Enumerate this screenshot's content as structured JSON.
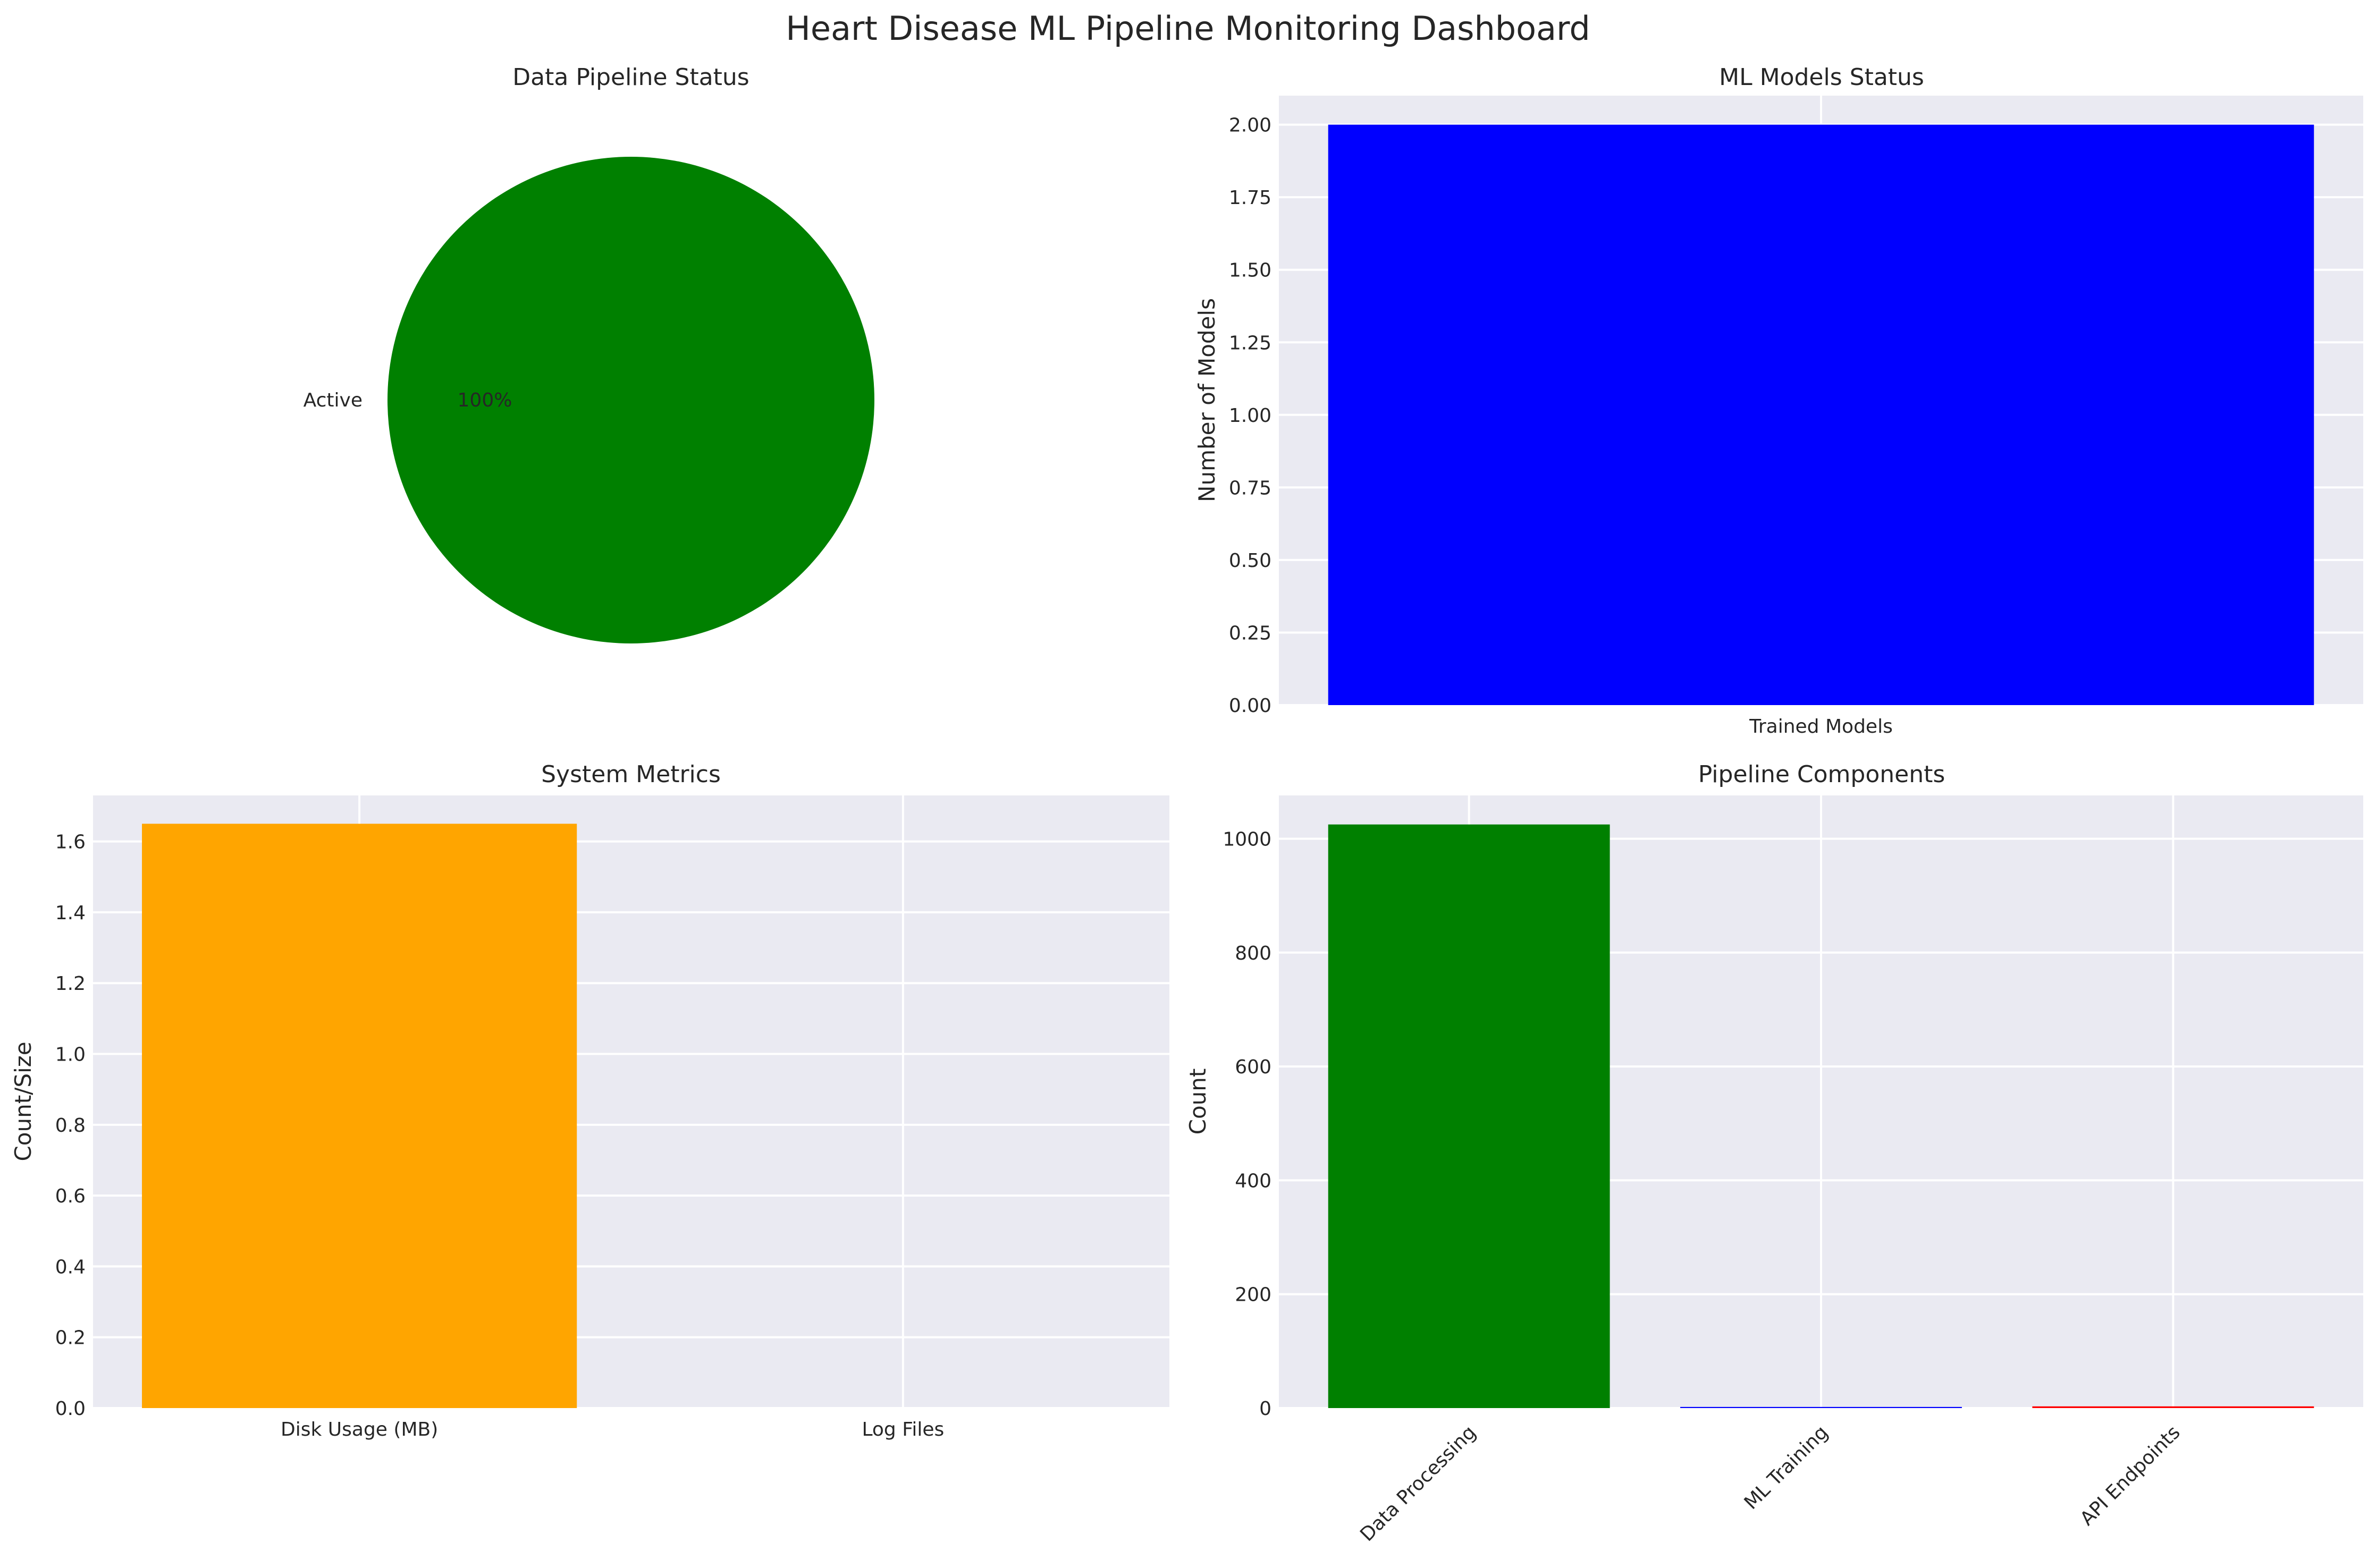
{
  "suptitle": "Heart Disease ML Pipeline Monitoring Dashboard",
  "chart_data": [
    {
      "type": "pie",
      "title": "Data Pipeline Status",
      "labels": [
        "Active"
      ],
      "values": [
        1
      ],
      "pct_labels": [
        "100%"
      ],
      "colors": [
        "#008000"
      ]
    },
    {
      "type": "bar",
      "title": "ML Models Status",
      "xlabel": "",
      "ylabel": "Number of Models",
      "categories": [
        "Trained Models"
      ],
      "values": [
        2
      ],
      "colors": [
        "#0000ff"
      ],
      "ylim": [
        0,
        2.1
      ],
      "yticks": [
        "0.00",
        "0.25",
        "0.50",
        "0.75",
        "1.00",
        "1.25",
        "1.50",
        "1.75",
        "2.00"
      ],
      "grid": true
    },
    {
      "type": "bar",
      "title": "System Metrics",
      "xlabel": "",
      "ylabel": "Count/Size",
      "categories": [
        "Disk Usage (MB)",
        "Log Files"
      ],
      "values": [
        1.65,
        0
      ],
      "colors": [
        "#ffa500",
        "#ffa500"
      ],
      "ylim": [
        0,
        1.73
      ],
      "yticks": [
        "0.0",
        "0.2",
        "0.4",
        "0.6",
        "0.8",
        "1.0",
        "1.2",
        "1.4",
        "1.6"
      ],
      "grid": true
    },
    {
      "type": "bar",
      "title": "Pipeline Components",
      "xlabel": "",
      "ylabel": "Count",
      "categories": [
        "Data Processing",
        "ML Training",
        "API Endpoints"
      ],
      "values": [
        1025,
        2,
        3
      ],
      "colors": [
        "#008000",
        "#0000ff",
        "#ff0000"
      ],
      "ylim": [
        0,
        1076
      ],
      "yticks": [
        "0",
        "200",
        "400",
        "600",
        "800",
        "1000"
      ],
      "grid": true
    }
  ]
}
